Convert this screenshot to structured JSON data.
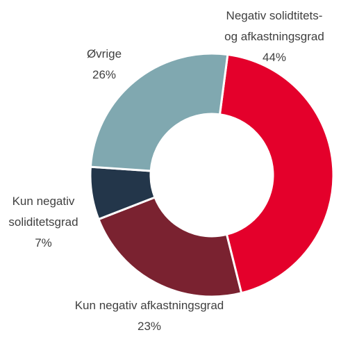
{
  "chart_data": {
    "type": "donut",
    "categories": [
      "Negativ solidtitets-\nog afkastningsgrad",
      "Kun negativ afkastningsgrad",
      "Kun negativ\nsoliditetsgrad",
      "Øvrige"
    ],
    "values": [
      44,
      23,
      7,
      26
    ],
    "value_labels": [
      "44%",
      "23%",
      "7%",
      "26%"
    ],
    "colors": [
      "#e4002b",
      "#7a2230",
      "#23364a",
      "#80a8b0"
    ]
  }
}
